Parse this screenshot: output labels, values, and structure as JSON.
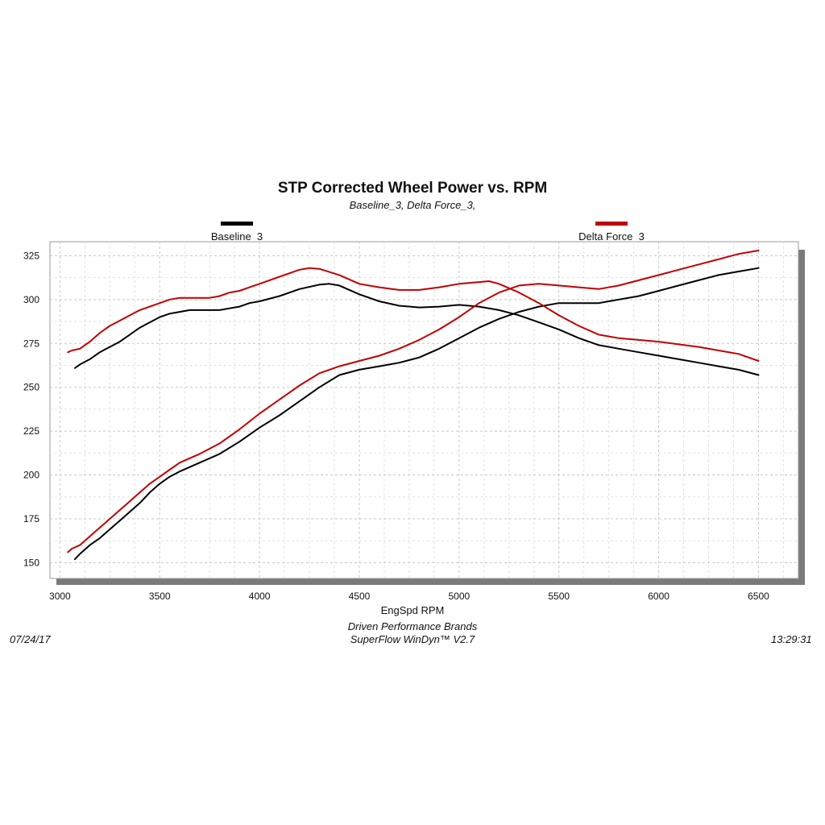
{
  "chart_data": {
    "type": "line",
    "title": "STP Corrected Wheel Power vs. RPM",
    "subtitle": "Baseline_3, Delta Force_3,",
    "xlabel": "EngSpd  RPM",
    "ylabel": "",
    "xlim": [
      2950,
      6700
    ],
    "ylim": [
      141,
      333
    ],
    "x_ticks": [
      3000,
      3500,
      4000,
      4500,
      5000,
      5500,
      6000,
      6500
    ],
    "y_ticks": [
      150,
      175,
      200,
      225,
      250,
      275,
      300,
      325
    ],
    "grid": true,
    "legend_position": "top",
    "series": [
      {
        "name": "Baseline_3",
        "color": "#000000",
        "curves": [
          {
            "x": [
              3075,
              3100,
              3150,
              3200,
              3250,
              3300,
              3350,
              3400,
              3450,
              3500,
              3550,
              3600,
              3650,
              3700,
              3750,
              3800,
              3850,
              3900,
              3950,
              4000,
              4100,
              4200,
              4300,
              4350,
              4400,
              4500,
              4600,
              4700,
              4800,
              4900,
              5000,
              5100,
              5200,
              5300,
              5400,
              5500,
              5600,
              5700,
              5800,
              5900,
              6000,
              6100,
              6200,
              6300,
              6400,
              6500
            ],
            "y": [
              261,
              263,
              266,
              270,
              273,
              276,
              280,
              284,
              287,
              290,
              292,
              293,
              294,
              294,
              294,
              294,
              295,
              296,
              298,
              299,
              302,
              306,
              308.5,
              309,
              308,
              303,
              299,
              296.5,
              295.5,
              296,
              297,
              296,
              294,
              291,
              287,
              283,
              278,
              274,
              272,
              270,
              268,
              266,
              264,
              262,
              260,
              257
            ]
          },
          {
            "x": [
              3075,
              3100,
              3150,
              3200,
              3250,
              3300,
              3350,
              3400,
              3450,
              3500,
              3550,
              3600,
              3700,
              3800,
              3900,
              4000,
              4100,
              4200,
              4300,
              4400,
              4500,
              4600,
              4700,
              4800,
              4900,
              5000,
              5100,
              5200,
              5300,
              5400,
              5500,
              5600,
              5700,
              5800,
              5900,
              6000,
              6100,
              6200,
              6300,
              6400,
              6500
            ],
            "y": [
              152,
              155,
              160,
              164,
              169,
              174,
              179,
              184,
              190,
              195,
              199,
              202,
              207,
              212,
              219,
              227,
              234,
              242,
              250,
              257,
              260,
              262,
              264,
              267,
              272,
              278,
              284,
              289,
              293,
              296,
              298,
              298,
              298,
              300,
              302,
              305,
              308,
              311,
              314,
              316,
              318
            ]
          }
        ]
      },
      {
        "name": "Delta Force_3",
        "color": "#c00000",
        "curves": [
          {
            "x": [
              3040,
              3060,
              3100,
              3150,
              3200,
              3250,
              3300,
              3350,
              3400,
              3450,
              3500,
              3550,
              3600,
              3650,
              3700,
              3750,
              3800,
              3850,
              3900,
              3950,
              4000,
              4100,
              4200,
              4250,
              4300,
              4400,
              4500,
              4600,
              4700,
              4800,
              4900,
              5000,
              5100,
              5150,
              5200,
              5300,
              5400,
              5500,
              5600,
              5700,
              5800,
              5900,
              6000,
              6100,
              6200,
              6300,
              6400,
              6500
            ],
            "y": [
              270,
              271,
              272,
              276,
              281,
              285,
              288,
              291,
              294,
              296,
              298,
              300,
              301,
              301,
              301,
              301,
              302,
              304,
              305,
              307,
              309,
              313,
              317,
              318,
              317.5,
              314,
              309,
              307,
              305.5,
              305.5,
              307,
              309,
              310,
              310.5,
              309,
              304,
              298,
              291,
              285,
              280,
              278,
              277,
              276,
              274.5,
              273,
              271,
              269,
              265
            ]
          },
          {
            "x": [
              3040,
              3060,
              3100,
              3150,
              3200,
              3250,
              3300,
              3350,
              3400,
              3450,
              3500,
              3550,
              3600,
              3700,
              3800,
              3900,
              4000,
              4100,
              4200,
              4300,
              4400,
              4500,
              4600,
              4700,
              4800,
              4900,
              5000,
              5100,
              5200,
              5300,
              5400,
              5500,
              5600,
              5700,
              5800,
              5900,
              6000,
              6100,
              6200,
              6300,
              6400,
              6500
            ],
            "y": [
              156,
              158,
              160,
              165,
              170,
              175,
              180,
              185,
              190,
              195,
              199,
              203,
              207,
              212,
              218,
              226,
              235,
              243,
              251,
              258,
              262,
              265,
              268,
              272,
              277,
              283,
              290,
              298,
              304,
              308,
              309,
              308,
              307,
              306,
              308,
              311,
              314,
              317,
              320,
              323,
              326,
              328
            ]
          }
        ]
      }
    ]
  },
  "footer": {
    "date": "07/24/17",
    "time": "13:29:31",
    "line1": "Driven Performance Brands",
    "line2": "SuperFlow WinDyn™  V2.7"
  }
}
